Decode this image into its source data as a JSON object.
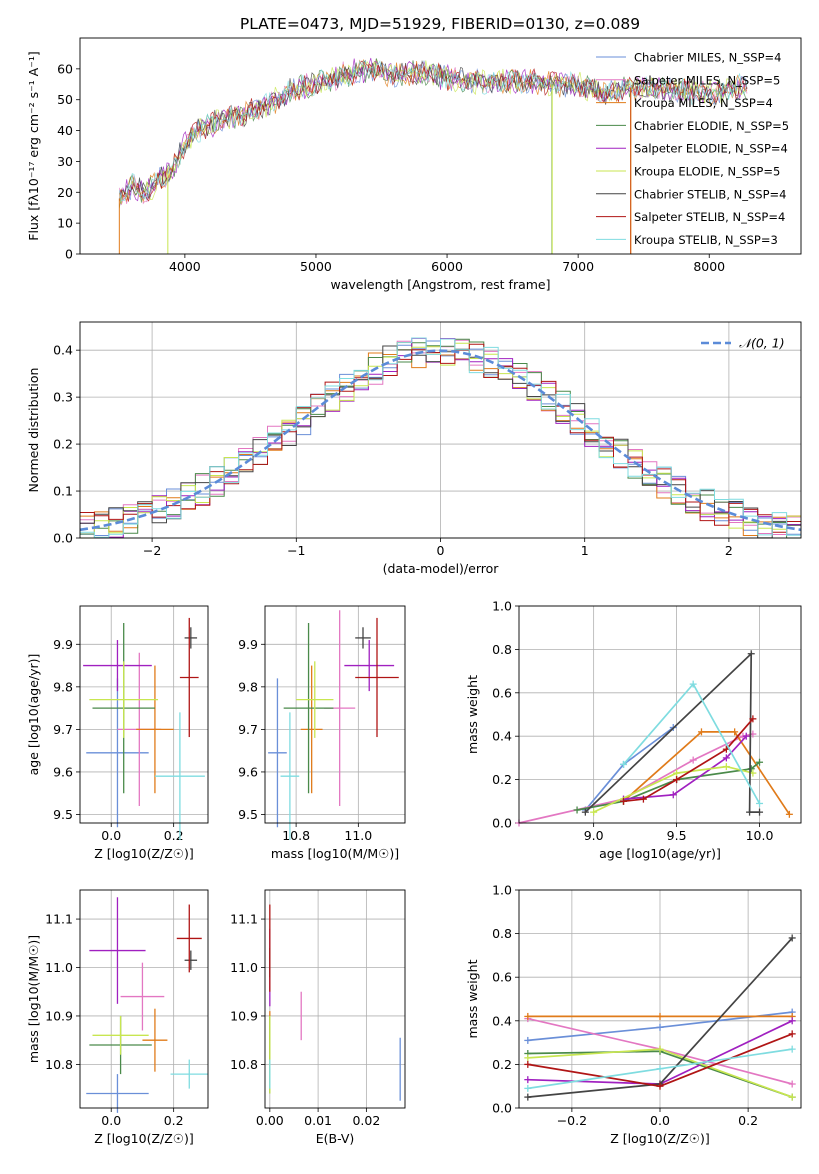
{
  "figure_title": "PLATE=0473, MJD=51929, FIBERID=0130, z=0.089",
  "palette": [
    "#6a8fd8",
    "#e377c2",
    "#e07b1a",
    "#4a8a4a",
    "#a020c0",
    "#c8e650",
    "#444444",
    "#b01515",
    "#7fdce0"
  ],
  "chart_data": [
    {
      "id": "spectrum",
      "type": "line",
      "xlabel": "wavelength [Angstrom, rest frame]",
      "ylabel": "Flux [fλ10⁻¹⁷ erg cm⁻² s⁻¹ A⁻¹]",
      "xlim": [
        3200,
        8700
      ],
      "ylim": [
        0,
        70
      ],
      "xticks": [
        4000,
        5000,
        6000,
        7000,
        8000
      ],
      "yticks": [
        0,
        10,
        20,
        30,
        40,
        50,
        60
      ],
      "grid": false,
      "legend_position": "top-right",
      "legend": [
        "Chabrier MILES, N_SSP=4",
        "Salpeter MILES, N_SSP=5",
        "Kroupa MILES, N_SSP=4",
        "Chabrier ELODIE, N_SSP=5",
        "Salpeter ELODIE, N_SSP=4",
        "Kroupa ELODIE, N_SSP=5",
        "Chabrier STELIB, N_SSP=4",
        "Salpeter STELIB, N_SSP=4",
        "Kroupa STELIB, N_SSP=3"
      ],
      "envelope": {
        "x": [
          3500,
          3600,
          3700,
          3800,
          3900,
          4000,
          4100,
          4200,
          4300,
          4400,
          4500,
          4600,
          4700,
          4800,
          4900,
          5000,
          5200,
          5400,
          5600,
          5800,
          6000,
          6200,
          6400,
          6600,
          6800,
          7000,
          7200,
          7400,
          7600,
          7800,
          8000,
          8200
        ],
        "y": [
          18,
          22,
          20,
          24,
          27,
          36,
          40,
          42,
          44,
          45,
          46,
          48,
          50,
          53,
          54,
          55,
          58,
          60,
          58,
          59,
          57,
          56,
          56,
          56,
          55,
          55,
          52,
          54,
          54,
          53,
          52,
          54
        ]
      }
    },
    {
      "id": "residuals",
      "type": "histogram",
      "xlabel": "(data-model)/error",
      "ylabel": "Normed distribution",
      "xlim": [
        -2.5,
        2.5
      ],
      "ylim": [
        0,
        0.46
      ],
      "xticks": [
        -2,
        -1,
        0,
        1,
        2
      ],
      "yticks": [
        0.0,
        0.1,
        0.2,
        0.3,
        0.4
      ],
      "grid": true,
      "legend_position": "top-right",
      "legend": [
        "𝒩(0, 1)"
      ]
    },
    {
      "id": "age-vs-z",
      "type": "errorbar",
      "xlabel": "Z [log10(Z/Z☉)]",
      "ylabel": "age  [log10(age/yr)]",
      "xlim": [
        -0.1,
        0.31
      ],
      "ylim": [
        9.48,
        9.99
      ],
      "xticks": [
        0.0,
        0.2
      ],
      "yticks": [
        9.5,
        9.6,
        9.7,
        9.8,
        9.9
      ],
      "grid": true,
      "points": [
        {
          "x": 0.02,
          "y": 9.645,
          "xerr": 0.1,
          "yerr": 0.175
        },
        {
          "x": 0.09,
          "y": 9.7,
          "xerr": 0.07,
          "yerr": 0.18
        },
        {
          "x": 0.14,
          "y": 9.7,
          "xerr": 0.06,
          "yerr": 0.15
        },
        {
          "x": 0.04,
          "y": 9.75,
          "xerr": 0.1,
          "yerr": 0.2
        },
        {
          "x": 0.02,
          "y": 9.85,
          "xerr": 0.11,
          "yerr": 0.06
        },
        {
          "x": 0.04,
          "y": 9.77,
          "xerr": 0.11,
          "yerr": 0.09
        },
        {
          "x": 0.255,
          "y": 9.915,
          "xerr": 0.02,
          "yerr": 0.025
        },
        {
          "x": 0.25,
          "y": 9.822,
          "xerr": 0.03,
          "yerr": 0.14
        },
        {
          "x": 0.22,
          "y": 9.59,
          "xerr": 0.08,
          "yerr": 0.15
        }
      ]
    },
    {
      "id": "age-vs-mass",
      "type": "errorbar",
      "xlabel": "mass [log10(M/M☉)]",
      "ylabel": "",
      "xlim": [
        10.7,
        11.15
      ],
      "ylim": [
        9.48,
        9.99
      ],
      "xticks": [
        10.8,
        11.0
      ],
      "yticks": [
        9.5,
        9.6,
        9.7,
        9.8,
        9.9
      ],
      "grid": true,
      "points": [
        {
          "x": 10.74,
          "y": 9.645,
          "xerr": 0.03,
          "yerr": 0.175
        },
        {
          "x": 10.94,
          "y": 9.75,
          "xerr": 0.05,
          "yerr": 0.23
        },
        {
          "x": 10.85,
          "y": 9.7,
          "xerr": 0.035,
          "yerr": 0.15
        },
        {
          "x": 10.84,
          "y": 9.75,
          "xerr": 0.08,
          "yerr": 0.2
        },
        {
          "x": 11.035,
          "y": 9.85,
          "xerr": 0.08,
          "yerr": 0.06
        },
        {
          "x": 10.86,
          "y": 9.77,
          "xerr": 0.06,
          "yerr": 0.09
        },
        {
          "x": 11.015,
          "y": 9.915,
          "xerr": 0.025,
          "yerr": 0.025
        },
        {
          "x": 11.06,
          "y": 9.822,
          "xerr": 0.07,
          "yerr": 0.14
        },
        {
          "x": 10.78,
          "y": 9.59,
          "xerr": 0.03,
          "yerr": 0.15
        }
      ]
    },
    {
      "id": "mass-weight-vs-age",
      "type": "line",
      "xlabel": "age  [log10(age/yr)]",
      "ylabel": "mass weight",
      "xlim": [
        8.55,
        10.25
      ],
      "ylim": [
        0.0,
        1.0
      ],
      "xticks": [
        9.0,
        9.5,
        10.0
      ],
      "yticks": [
        0.0,
        0.2,
        0.4,
        0.6,
        0.8,
        1.0
      ],
      "grid": true,
      "series": [
        {
          "x": [
            8.95,
            9.18,
            9.48
          ],
          "y": [
            0.06,
            0.27,
            0.44
          ]
        },
        {
          "x": [
            8.55,
            9.18,
            9.6,
            9.9,
            9.96
          ],
          "y": [
            0.0,
            0.11,
            0.29,
            0.4,
            0.41
          ]
        },
        {
          "x": [
            9.18,
            9.65,
            9.85,
            10.18
          ],
          "y": [
            0.1,
            0.42,
            0.42,
            0.04
          ]
        },
        {
          "x": [
            8.9,
            9.18,
            9.5,
            9.95,
            10.0
          ],
          "y": [
            0.06,
            0.1,
            0.2,
            0.25,
            0.28
          ]
        },
        {
          "x": [
            9.18,
            9.48,
            9.8,
            9.92
          ],
          "y": [
            0.11,
            0.13,
            0.3,
            0.4
          ]
        },
        {
          "x": [
            9.0,
            9.5,
            9.8,
            9.96
          ],
          "y": [
            0.05,
            0.23,
            0.26,
            0.23
          ]
        },
        {
          "x": [
            8.95,
            9.95,
            9.94,
            10.0
          ],
          "y": [
            0.05,
            0.78,
            0.05,
            0.05
          ]
        },
        {
          "x": [
            9.18,
            9.3,
            9.5,
            9.8,
            9.96
          ],
          "y": [
            0.1,
            0.11,
            0.2,
            0.34,
            0.48
          ]
        },
        {
          "x": [
            9.18,
            9.6,
            10.0
          ],
          "y": [
            0.27,
            0.64,
            0.09
          ]
        }
      ]
    },
    {
      "id": "mass-vs-z",
      "type": "errorbar",
      "xlabel": "Z [log10(Z/Z☉)]",
      "ylabel": "mass [log10(M/M☉)]",
      "xlim": [
        -0.1,
        0.31
      ],
      "ylim": [
        10.71,
        11.16
      ],
      "xticks": [
        0.0,
        0.2
      ],
      "yticks": [
        10.8,
        10.9,
        11.0,
        11.1
      ],
      "grid": true,
      "points": [
        {
          "x": 0.02,
          "y": 10.74,
          "xerr": 0.1,
          "yerr": 0.04
        },
        {
          "x": 0.1,
          "y": 10.94,
          "xerr": 0.07,
          "yerr": 0.07
        },
        {
          "x": 0.14,
          "y": 10.85,
          "xerr": 0.04,
          "yerr": 0.065
        },
        {
          "x": 0.03,
          "y": 10.84,
          "xerr": 0.1,
          "yerr": 0.06
        },
        {
          "x": 0.02,
          "y": 11.035,
          "xerr": 0.09,
          "yerr": 0.11
        },
        {
          "x": 0.03,
          "y": 10.86,
          "xerr": 0.09,
          "yerr": 0.04
        },
        {
          "x": 0.255,
          "y": 11.015,
          "xerr": 0.02,
          "yerr": 0.02
        },
        {
          "x": 0.25,
          "y": 11.06,
          "xerr": 0.04,
          "yerr": 0.07
        },
        {
          "x": 0.25,
          "y": 10.78,
          "xerr": 0.06,
          "yerr": 0.03
        }
      ]
    },
    {
      "id": "mass-vs-ebv",
      "type": "errorbar",
      "xlabel": "E(B-V)",
      "ylabel": "",
      "xlim": [
        -0.001,
        0.028
      ],
      "ylim": [
        10.71,
        11.16
      ],
      "xticks": [
        0.0,
        0.01,
        0.02
      ],
      "yticks": [
        10.8,
        10.9,
        11.0,
        11.1
      ],
      "grid": true,
      "points": [
        {
          "x": 0.027,
          "y": 10.79,
          "xerr": 0,
          "yerr": 0.065
        },
        {
          "x": 0.0065,
          "y": 10.9,
          "xerr": 0,
          "yerr": 0.05
        },
        {
          "x": 0.0,
          "y": 10.86,
          "xerr": 0,
          "yerr": 0.05
        },
        {
          "x": 0.0,
          "y": 10.82,
          "xerr": 0,
          "yerr": 0.08
        },
        {
          "x": 0.0,
          "y": 11.0,
          "xerr": 0,
          "yerr": 0.08
        },
        {
          "x": 0.0,
          "y": 10.82,
          "xerr": 0,
          "yerr": 0.08
        },
        {
          "x": 0.0,
          "y": 11.01,
          "xerr": 0,
          "yerr": 0.03
        },
        {
          "x": 0.0,
          "y": 11.04,
          "xerr": 0,
          "yerr": 0.09
        },
        {
          "x": 0.0,
          "y": 10.78,
          "xerr": 0,
          "yerr": 0.03
        }
      ]
    },
    {
      "id": "mass-weight-vs-z",
      "type": "line",
      "xlabel": "Z [log10(Z/Z☉)]",
      "ylabel": "mass weight",
      "xlim": [
        -0.32,
        0.32
      ],
      "ylim": [
        0.0,
        1.0
      ],
      "xticks": [
        -0.2,
        0.0,
        0.2
      ],
      "yticks": [
        0.0,
        0.2,
        0.4,
        0.6,
        0.8,
        1.0
      ],
      "grid": true,
      "series": [
        {
          "x": [
            -0.3,
            0.0,
            0.3
          ],
          "y": [
            0.31,
            0.37,
            0.44
          ]
        },
        {
          "x": [
            -0.3,
            0.0,
            0.3
          ],
          "y": [
            0.41,
            0.27,
            0.11
          ]
        },
        {
          "x": [
            -0.3,
            0.0,
            0.3
          ],
          "y": [
            0.42,
            0.42,
            0.42
          ]
        },
        {
          "x": [
            -0.3,
            0.0,
            0.3
          ],
          "y": [
            0.25,
            0.26,
            0.05
          ]
        },
        {
          "x": [
            -0.3,
            0.0,
            0.3
          ],
          "y": [
            0.13,
            0.11,
            0.4
          ]
        },
        {
          "x": [
            -0.3,
            0.0,
            0.3
          ],
          "y": [
            0.23,
            0.27,
            0.05
          ]
        },
        {
          "x": [
            -0.3,
            0.0,
            0.3
          ],
          "y": [
            0.05,
            0.11,
            0.78
          ]
        },
        {
          "x": [
            -0.3,
            0.0,
            0.3
          ],
          "y": [
            0.2,
            0.1,
            0.34
          ]
        },
        {
          "x": [
            -0.3,
            0.0,
            0.3
          ],
          "y": [
            0.09,
            0.18,
            0.27
          ]
        }
      ]
    }
  ]
}
